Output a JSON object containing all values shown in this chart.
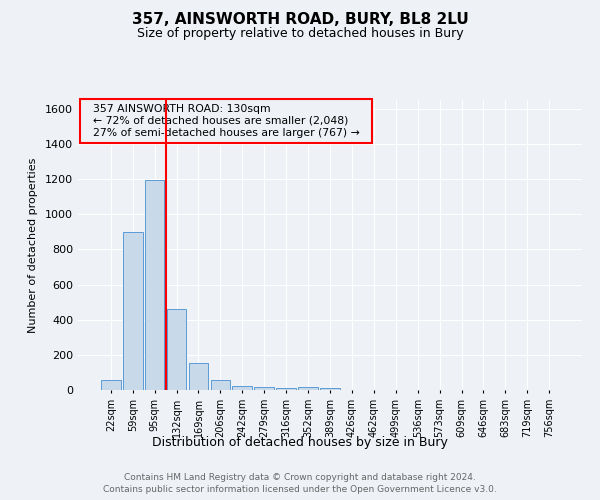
{
  "title": "357, AINSWORTH ROAD, BURY, BL8 2LU",
  "subtitle": "Size of property relative to detached houses in Bury",
  "xlabel": "Distribution of detached houses by size in Bury",
  "ylabel": "Number of detached properties",
  "footer1": "Contains HM Land Registry data © Crown copyright and database right 2024.",
  "footer2": "Contains public sector information licensed under the Open Government Licence v3.0.",
  "bar_labels": [
    "22sqm",
    "59sqm",
    "95sqm",
    "132sqm",
    "169sqm",
    "206sqm",
    "242sqm",
    "279sqm",
    "316sqm",
    "352sqm",
    "389sqm",
    "426sqm",
    "462sqm",
    "499sqm",
    "536sqm",
    "573sqm",
    "609sqm",
    "646sqm",
    "683sqm",
    "719sqm",
    "756sqm"
  ],
  "bar_values": [
    55,
    900,
    1195,
    460,
    155,
    55,
    20,
    15,
    10,
    15,
    10,
    0,
    0,
    0,
    0,
    0,
    0,
    0,
    0,
    0,
    0
  ],
  "bar_color": "#c8daea",
  "bar_edge_color": "#5b9bd5",
  "ylim": [
    0,
    1650
  ],
  "yticks": [
    0,
    200,
    400,
    600,
    800,
    1000,
    1200,
    1400,
    1600
  ],
  "red_line_x": 2.5,
  "annotation_text1": "357 AINSWORTH ROAD: 130sqm",
  "annotation_text2": "← 72% of detached houses are smaller (2,048)",
  "annotation_text3": "27% of semi-detached houses are larger (767) →",
  "box_edge_color": "red",
  "background_color": "#eef2f7",
  "plot_bg_color": "#eef2f7",
  "grid_color": "#ffffff",
  "title_fontsize": 11,
  "subtitle_fontsize": 9
}
